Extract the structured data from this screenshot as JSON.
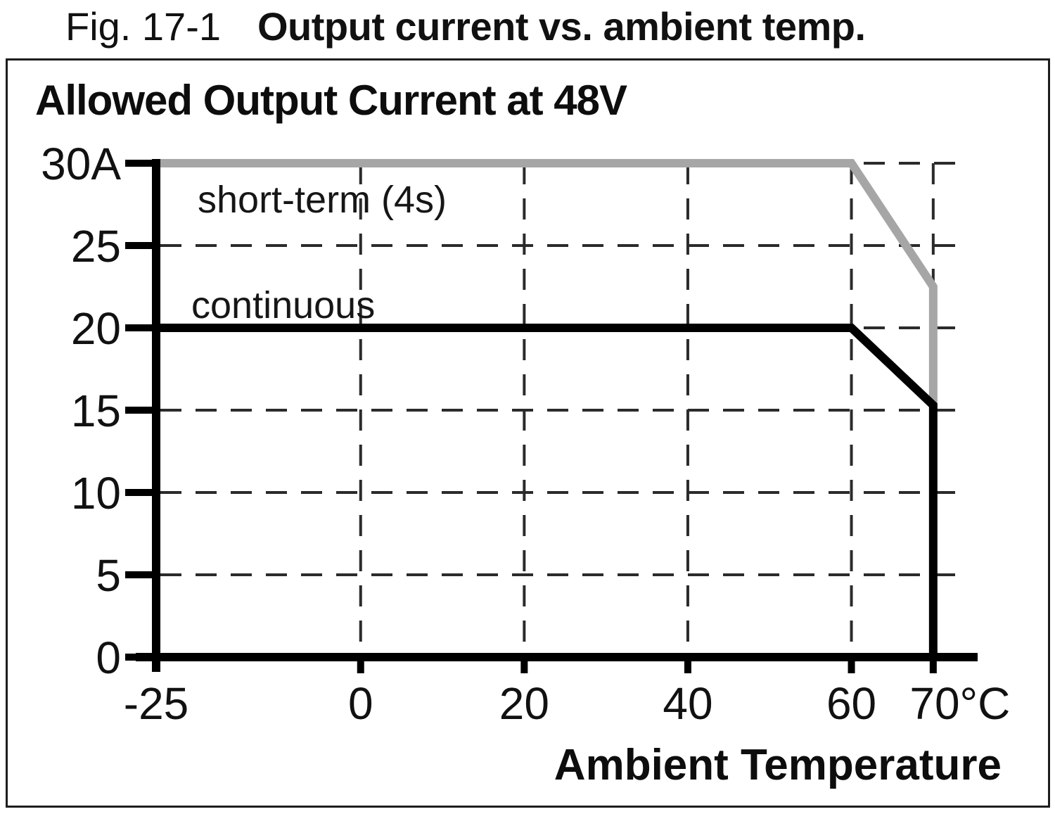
{
  "caption": {
    "fig_label": "Fig. 17-1",
    "title": "Output current vs. ambient temp."
  },
  "chart_data": {
    "type": "line",
    "title": "Allowed Output Current at 48V",
    "xlabel": "Ambient Temperature",
    "x_unit": "°C",
    "y_unit": "A",
    "xlim": [
      -25,
      75
    ],
    "ylim": [
      0,
      31
    ],
    "grid": "dashed",
    "legend_position": "inline-labels",
    "x_ticks": [
      {
        "value": -25,
        "label": "-25"
      },
      {
        "value": 0,
        "label": "0"
      },
      {
        "value": 20,
        "label": "20"
      },
      {
        "value": 40,
        "label": "40"
      },
      {
        "value": 60,
        "label": "60"
      },
      {
        "value": 70,
        "label": "70°C"
      }
    ],
    "y_ticks": [
      {
        "value": 30,
        "label": "30A"
      },
      {
        "value": 25,
        "label": "25"
      },
      {
        "value": 20,
        "label": "20"
      },
      {
        "value": 15,
        "label": "15"
      },
      {
        "value": 10,
        "label": "10"
      },
      {
        "value": 5,
        "label": "5"
      },
      {
        "value": 0,
        "label": "0"
      }
    ],
    "series": [
      {
        "name": "short-term (4s)",
        "color": "#a6a6a6",
        "points": [
          [
            -25,
            30
          ],
          [
            60,
            30
          ],
          [
            70,
            22.5
          ],
          [
            70,
            15.3
          ]
        ]
      },
      {
        "name": "continuous",
        "color": "#000000",
        "points": [
          [
            -25,
            20
          ],
          [
            60,
            20
          ],
          [
            70,
            15.3
          ],
          [
            70,
            0
          ]
        ]
      }
    ]
  }
}
